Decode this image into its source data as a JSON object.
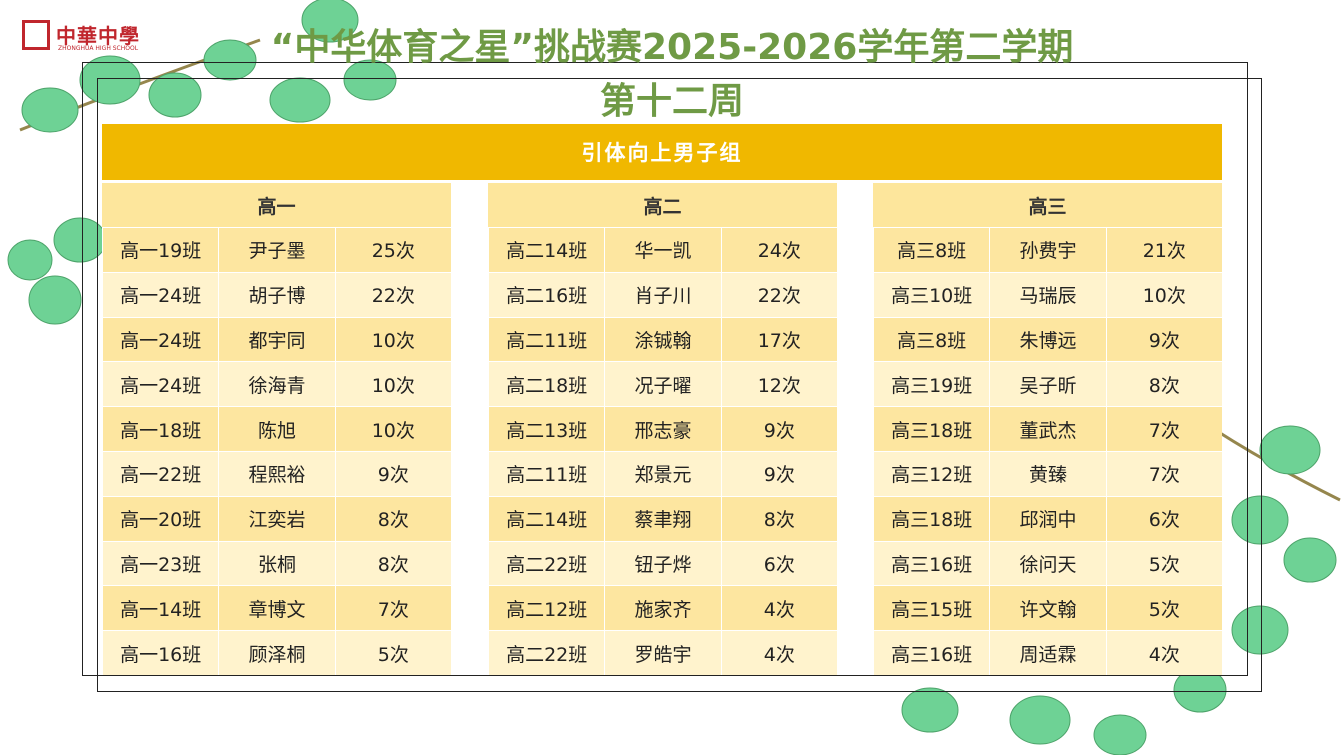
{
  "header": {
    "logo": "中華中學",
    "logo_sub": "ZHONGHUA HIGH SCHOOL",
    "title": "“中华体育之星”挑战赛2025-2026学年第二学期",
    "subtitle": "第十二周"
  },
  "banner": "引体向上男子组",
  "groups": [
    {
      "name": "高一",
      "rows": [
        [
          "高一19班",
          "尹子墨",
          "25次"
        ],
        [
          "高一24班",
          "胡子博",
          "22次"
        ],
        [
          "高一24班",
          "都宇同",
          "10次"
        ],
        [
          "高一24班",
          "徐海青",
          "10次"
        ],
        [
          "高一18班",
          "陈旭",
          "10次"
        ],
        [
          "高一22班",
          "程熙裕",
          "9次"
        ],
        [
          "高一20班",
          "江奕岩",
          "8次"
        ],
        [
          "高一23班",
          "张桐",
          "8次"
        ],
        [
          "高一14班",
          "章博文",
          "7次"
        ],
        [
          "高一16班",
          "顾泽桐",
          "5次"
        ]
      ]
    },
    {
      "name": "高二",
      "rows": [
        [
          "高二14班",
          "华一凯",
          "24次"
        ],
        [
          "高二16班",
          "肖子川",
          "22次"
        ],
        [
          "高二11班",
          "涂铖翰",
          "17次"
        ],
        [
          "高二18班",
          "况子曜",
          "12次"
        ],
        [
          "高二13班",
          "邢志豪",
          "9次"
        ],
        [
          "高二11班",
          "郑景元",
          "9次"
        ],
        [
          "高二14班",
          "蔡聿翔",
          "8次"
        ],
        [
          "高二22班",
          "钮子烨",
          "6次"
        ],
        [
          "高二12班",
          "施家齐",
          "4次"
        ],
        [
          "高二22班",
          "罗皓宇",
          "4次"
        ]
      ]
    },
    {
      "name": "高三",
      "rows": [
        [
          "高三8班",
          "孙费宇",
          "21次"
        ],
        [
          "高三10班",
          "马瑞辰",
          "10次"
        ],
        [
          "高三8班",
          "朱博远",
          "9次"
        ],
        [
          "高三19班",
          "吴子昕",
          "8次"
        ],
        [
          "高三18班",
          "董武杰",
          "7次"
        ],
        [
          "高三12班",
          "黄臻",
          "7次"
        ],
        [
          "高三18班",
          "邱润中",
          "6次"
        ],
        [
          "高三16班",
          "徐问天",
          "5次"
        ],
        [
          "高三15班",
          "许文翰",
          "5次"
        ],
        [
          "高三16班",
          "周适霖",
          "4次"
        ]
      ]
    }
  ]
}
